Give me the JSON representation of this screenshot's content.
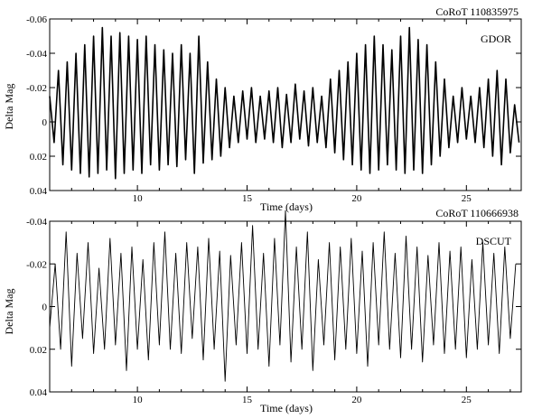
{
  "chart_data": [
    {
      "type": "line",
      "title": "CoRoT 110835975",
      "annotation": "GDOR",
      "xlabel": "Time (days)",
      "ylabel": "Delta Mag",
      "xlim": [
        6,
        27.5
      ],
      "ylim": [
        -0.06,
        0.04
      ],
      "y_inverted": true,
      "x_ticks": [
        10,
        15,
        20,
        25
      ],
      "x_tick_labels": [
        "10",
        "15",
        "20",
        "25"
      ],
      "y_ticks": [
        -0.06,
        -0.04,
        -0.02,
        0,
        0.02,
        0.04
      ],
      "y_tick_labels": [
        "-0.06",
        "-0.04",
        "-0.02",
        "0",
        "0.02",
        "0.04"
      ],
      "series": [
        {
          "x": [
            6.0,
            6.2,
            6.4,
            6.6,
            6.8,
            7.0,
            7.2,
            7.4,
            7.6,
            7.8,
            8.0,
            8.2,
            8.4,
            8.6,
            8.8,
            9.0,
            9.2,
            9.4,
            9.6,
            9.8,
            10.0,
            10.2,
            10.4,
            10.6,
            10.8,
            11.0,
            11.2,
            11.4,
            11.6,
            11.8,
            12.0,
            12.2,
            12.4,
            12.6,
            12.8,
            13.0,
            13.2,
            13.4,
            13.6,
            13.8,
            14.0,
            14.2,
            14.4,
            14.6,
            14.8,
            15.0,
            15.2,
            15.4,
            15.6,
            15.8,
            16.0,
            16.2,
            16.4,
            16.6,
            16.8,
            17.0,
            17.2,
            17.4,
            17.6,
            17.8,
            18.0,
            18.2,
            18.4,
            18.6,
            18.8,
            19.0,
            19.2,
            19.4,
            19.6,
            19.8,
            20.0,
            20.2,
            20.4,
            20.6,
            20.8,
            21.0,
            21.2,
            21.4,
            21.6,
            21.8,
            22.0,
            22.2,
            22.4,
            22.6,
            22.8,
            23.0,
            23.2,
            23.4,
            23.6,
            23.8,
            24.0,
            24.2,
            24.4,
            24.6,
            24.8,
            25.0,
            25.2,
            25.4,
            25.6,
            25.8,
            26.0,
            26.2,
            26.4,
            26.6,
            26.8,
            27.0,
            27.2,
            27.4
          ],
          "values": [
            -0.015,
            0.012,
            -0.03,
            0.025,
            -0.035,
            0.028,
            -0.04,
            0.03,
            -0.045,
            0.032,
            -0.05,
            0.03,
            -0.055,
            0.028,
            -0.05,
            0.033,
            -0.052,
            0.03,
            -0.05,
            0.028,
            -0.048,
            0.03,
            -0.05,
            0.025,
            -0.045,
            0.028,
            -0.042,
            0.025,
            -0.04,
            0.026,
            -0.045,
            0.022,
            -0.04,
            0.03,
            -0.05,
            0.024,
            -0.035,
            0.022,
            -0.025,
            0.02,
            -0.02,
            0.015,
            -0.015,
            0.012,
            -0.018,
            0.01,
            -0.02,
            0.012,
            -0.015,
            0.01,
            -0.018,
            0.012,
            -0.02,
            0.015,
            -0.016,
            0.012,
            -0.022,
            0.01,
            -0.018,
            0.014,
            -0.02,
            0.012,
            -0.015,
            0.015,
            -0.025,
            0.018,
            -0.03,
            0.022,
            -0.035,
            0.025,
            -0.04,
            0.028,
            -0.045,
            0.03,
            -0.05,
            0.028,
            -0.045,
            0.025,
            -0.042,
            0.028,
            -0.05,
            0.03,
            -0.055,
            0.028,
            -0.048,
            0.03,
            -0.045,
            0.025,
            -0.035,
            0.02,
            -0.025,
            0.015,
            -0.015,
            0.012,
            -0.02,
            0.01,
            -0.015,
            0.012,
            -0.02,
            0.015,
            -0.025,
            0.02,
            -0.03,
            0.025,
            -0.025,
            0.018,
            -0.01,
            0.012
          ]
        }
      ]
    },
    {
      "type": "line",
      "title": "CoRoT 110666938",
      "annotation": "DSCUT",
      "xlabel": "Time (days)",
      "ylabel": "Delta Mag",
      "xlim": [
        6,
        27.5
      ],
      "ylim": [
        -0.04,
        0.04
      ],
      "y_inverted": true,
      "x_ticks": [
        10,
        15,
        20,
        25
      ],
      "x_tick_labels": [
        "10",
        "15",
        "20",
        "25"
      ],
      "y_ticks": [
        -0.04,
        -0.02,
        0,
        0.02,
        0.04
      ],
      "y_tick_labels": [
        "-0.04",
        "-0.02",
        "0",
        "0.02",
        "0.04"
      ],
      "series": [
        {
          "x": [
            6.0,
            6.25,
            6.5,
            6.75,
            7.0,
            7.25,
            7.5,
            7.75,
            8.0,
            8.25,
            8.5,
            8.75,
            9.0,
            9.25,
            9.5,
            9.75,
            10.0,
            10.25,
            10.5,
            10.75,
            11.0,
            11.25,
            11.5,
            11.75,
            12.0,
            12.25,
            12.5,
            12.75,
            13.0,
            13.25,
            13.5,
            13.75,
            14.0,
            14.25,
            14.5,
            14.75,
            15.0,
            15.25,
            15.5,
            15.75,
            16.0,
            16.25,
            16.5,
            16.75,
            17.0,
            17.25,
            17.5,
            17.75,
            18.0,
            18.25,
            18.5,
            18.75,
            19.0,
            19.25,
            19.5,
            19.75,
            20.0,
            20.25,
            20.5,
            20.75,
            21.0,
            21.25,
            21.5,
            21.75,
            22.0,
            22.25,
            22.5,
            22.75,
            23.0,
            23.25,
            23.5,
            23.75,
            24.0,
            24.25,
            24.5,
            24.75,
            25.0,
            25.25,
            25.5,
            25.75,
            26.0,
            26.25,
            26.5,
            26.75,
            27.0,
            27.25
          ],
          "values": [
            0.01,
            -0.02,
            0.02,
            -0.035,
            0.028,
            -0.025,
            0.015,
            -0.03,
            0.022,
            -0.018,
            0.02,
            -0.032,
            0.018,
            -0.025,
            0.03,
            -0.028,
            0.02,
            -0.022,
            0.025,
            -0.03,
            0.018,
            -0.035,
            0.02,
            -0.025,
            0.022,
            -0.03,
            0.015,
            -0.028,
            0.025,
            -0.032,
            0.02,
            -0.026,
            0.035,
            -0.024,
            0.018,
            -0.03,
            0.022,
            -0.038,
            0.02,
            -0.025,
            0.028,
            -0.032,
            0.018,
            -0.045,
            0.026,
            -0.028,
            0.02,
            -0.035,
            0.03,
            -0.022,
            0.018,
            -0.03,
            0.025,
            -0.028,
            0.02,
            -0.032,
            0.022,
            -0.026,
            0.028,
            -0.03,
            0.018,
            -0.035,
            0.02,
            -0.025,
            0.024,
            -0.033,
            0.02,
            -0.028,
            0.026,
            -0.024,
            0.018,
            -0.03,
            0.022,
            -0.026,
            0.02,
            -0.028,
            0.024,
            -0.022,
            0.02,
            -0.03,
            0.018,
            -0.025,
            0.022,
            -0.028,
            0.015,
            -0.02
          ]
        }
      ]
    }
  ]
}
